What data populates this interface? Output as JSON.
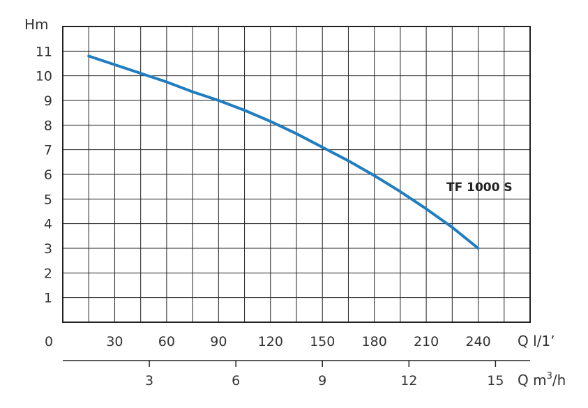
{
  "chart_data": {
    "type": "line",
    "ylabel": "Hm",
    "xlabel": "Q l/1’",
    "xlabel_secondary_prefix": "Q m",
    "xlabel_secondary_sup": "3",
    "xlabel_secondary_suffix": "/h",
    "origin_label": "0",
    "xlim": [
      0,
      270
    ],
    "ylim": [
      0,
      12
    ],
    "x_ticks": [
      30,
      60,
      90,
      120,
      150,
      180,
      210,
      240
    ],
    "y_ticks": [
      1,
      2,
      3,
      4,
      5,
      6,
      7,
      8,
      9,
      10,
      11
    ],
    "secondary_x_ticks": [
      3,
      6,
      9,
      12,
      15
    ],
    "grid": true,
    "series": [
      {
        "name": "TF 1000 S",
        "color": "#1f7dc0",
        "x": [
          15,
          30,
          45,
          60,
          75,
          90,
          105,
          120,
          135,
          150,
          165,
          180,
          195,
          210,
          225,
          240
        ],
        "y": [
          10.8,
          10.45,
          10.1,
          9.75,
          9.35,
          9.0,
          8.6,
          8.15,
          7.65,
          7.1,
          6.55,
          5.95,
          5.3,
          4.6,
          3.85,
          3.0
        ]
      }
    ]
  }
}
